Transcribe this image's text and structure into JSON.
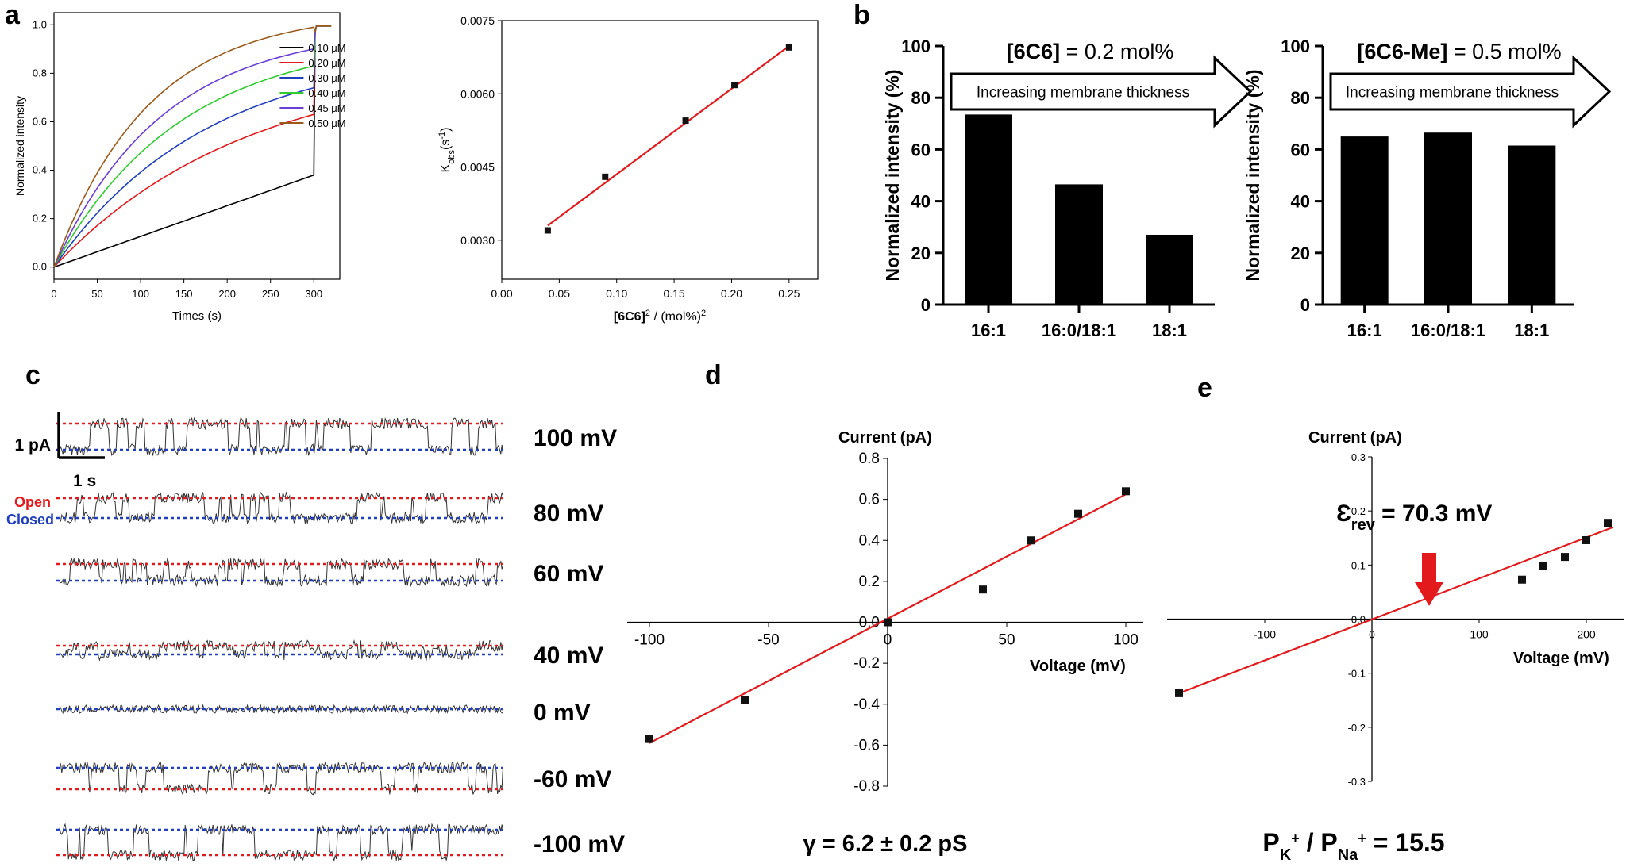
{
  "panels": {
    "a": "a",
    "b": "b",
    "c": "c",
    "d": "d",
    "e": "e"
  },
  "chart_data": [
    {
      "id": "a1",
      "type": "line",
      "xlabel": "Times (s)",
      "ylabel": "Normalized intensity",
      "xlim": [
        0,
        330
      ],
      "ylim": [
        -0.05,
        1.05
      ],
      "xticks": [
        0,
        50,
        100,
        150,
        200,
        250,
        300
      ],
      "yticks": [
        0.0,
        0.2,
        0.4,
        0.6,
        0.8,
        1.0
      ],
      "ytick_labels": [
        "0.0",
        "0.2",
        "0.4",
        "0.6",
        "0.8",
        "1.0"
      ],
      "series": [
        {
          "name": "0.10 μM",
          "color": "#000000",
          "end_value": 0.38
        },
        {
          "name": "0.20 μM",
          "color": "#e31a1c",
          "end_value": 0.63
        },
        {
          "name": "0.30 μM",
          "color": "#1f3fbf",
          "end_value": 0.74
        },
        {
          "name": "0.40 μM",
          "color": "#2ecc2e",
          "end_value": 0.83
        },
        {
          "name": "0.45 μM",
          "color": "#6a3fd6",
          "end_value": 0.9
        },
        {
          "name": "0.50 μM",
          "color": "#9b5a1a",
          "end_value": 0.99
        }
      ]
    },
    {
      "id": "a2",
      "type": "scatter",
      "xlabel_main": "[6C6]",
      "xlabel_sup": "2",
      "xlabel_rest": " / (mol%)",
      "xlabel_sup2": "2",
      "ylabel_main": "K",
      "ylabel_sub": "obs",
      "ylabel_rest": "(s",
      "ylabel_sup": "-1",
      "ylabel_end": ")",
      "xlim": [
        0.0,
        0.275
      ],
      "ylim": [
        0.0022,
        0.0075
      ],
      "xticks": [
        0.0,
        0.05,
        0.1,
        0.15,
        0.2,
        0.25
      ],
      "xtick_labels": [
        "0.00",
        "0.05",
        "0.10",
        "0.15",
        "0.20",
        "0.25"
      ],
      "yticks": [
        0.003,
        0.0045,
        0.006,
        0.0075
      ],
      "ytick_labels": [
        "0.0030",
        "0.0045",
        "0.0060",
        "0.0075"
      ],
      "points": [
        [
          0.04,
          0.0032
        ],
        [
          0.09,
          0.0043
        ],
        [
          0.16,
          0.00545
        ],
        [
          0.2025,
          0.00618
        ],
        [
          0.25,
          0.00695
        ]
      ],
      "fit": [
        [
          0.04,
          0.0033
        ],
        [
          0.25,
          0.00698
        ]
      ]
    },
    {
      "id": "b1",
      "type": "bar",
      "ylabel": "Normalized intensity (%)",
      "categories": [
        "16:1",
        "16:0/18:1",
        "18:1"
      ],
      "values": [
        73.5,
        46.5,
        27
      ],
      "ylim": [
        0,
        100
      ],
      "yticks": [
        0,
        20,
        40,
        60,
        80,
        100
      ],
      "title_bold": "[6C6]",
      "title_rest": " = 0.2 mol%",
      "arrow_text": "Increasing membrane thickness"
    },
    {
      "id": "b2",
      "type": "bar",
      "ylabel": "Normalized intensity (%)",
      "categories": [
        "16:1",
        "16:0/18:1",
        "18:1"
      ],
      "values": [
        65,
        66.5,
        61.5
      ],
      "ylim": [
        0,
        100
      ],
      "yticks": [
        0,
        20,
        40,
        60,
        80,
        100
      ],
      "title_bold": "[6C6-Me]",
      "title_rest": " = 0.5 mol%",
      "arrow_text": "Increasing membrane thickness"
    },
    {
      "id": "c",
      "type": "traces",
      "scale_y": "1 pA",
      "scale_x": "1 s",
      "open_label": "Open",
      "closed_label": "Closed",
      "open_color": "#e31a1c",
      "closed_color": "#1f3fbf",
      "voltages": [
        "100 mV",
        "80 mV",
        "60 mV",
        "40 mV",
        "0 mV",
        "-60 mV",
        "-100 mV"
      ]
    },
    {
      "id": "d",
      "type": "scatter",
      "ylabel": "Current (pA)",
      "xlabel": "Voltage (mV)",
      "xlim": [
        -100,
        100
      ],
      "ylim": [
        -0.8,
        0.8
      ],
      "xticks": [
        -100,
        -50,
        0,
        50,
        100
      ],
      "xtick_labels": [
        "-100",
        "-50",
        "0",
        "50",
        "100"
      ],
      "yticks": [
        -0.8,
        -0.6,
        -0.4,
        -0.2,
        0.0,
        0.2,
        0.4,
        0.6,
        0.8
      ],
      "ytick_labels": [
        "-0.8",
        "-0.6",
        "-0.4",
        "-0.2",
        "0.0",
        "0.2",
        "0.4",
        "0.6",
        "0.8"
      ],
      "points": [
        [
          -100,
          -0.57
        ],
        [
          -60,
          -0.38
        ],
        [
          0,
          0.0
        ],
        [
          40,
          0.16
        ],
        [
          60,
          0.4
        ],
        [
          80,
          0.53
        ],
        [
          100,
          0.64
        ]
      ],
      "fit": [
        [
          -100,
          -0.59
        ],
        [
          100,
          0.625
        ]
      ],
      "caption": "γ = 6.2 ± 0.2 pS"
    },
    {
      "id": "e",
      "type": "scatter",
      "ylabel": "Current (pA)",
      "xlabel": "Voltage (mV)",
      "xlim": [
        -180,
        225
      ],
      "ylim": [
        -0.3,
        0.3
      ],
      "xticks": [
        -100,
        0,
        100,
        200
      ],
      "xtick_labels": [
        "-100",
        "0",
        "100",
        "200"
      ],
      "yticks": [
        -0.3,
        -0.2,
        -0.1,
        0.0,
        0.1,
        0.2,
        0.3
      ],
      "ytick_labels": [
        "-0.3",
        "-0.2",
        "-0.1",
        "0.0",
        "0.1",
        "0.2",
        "0.3"
      ],
      "points": [
        [
          -180,
          -0.137
        ],
        [
          140,
          0.073
        ],
        [
          160,
          0.098
        ],
        [
          180,
          0.115
        ],
        [
          200,
          0.146
        ],
        [
          220,
          0.178
        ]
      ],
      "fit": [
        [
          -180,
          -0.137
        ],
        [
          225,
          0.17
        ]
      ],
      "annotation_main": "Ɛ",
      "annotation_sub": "rev",
      "annotation_rest": " = 70.3 mV",
      "cap_P1": "P",
      "cap_sub1": "K",
      "cap_sup1": "+",
      "cap_mid": " / P",
      "cap_sub2": "Na",
      "cap_sup2": "+",
      "cap_end": " = 15.5"
    }
  ]
}
